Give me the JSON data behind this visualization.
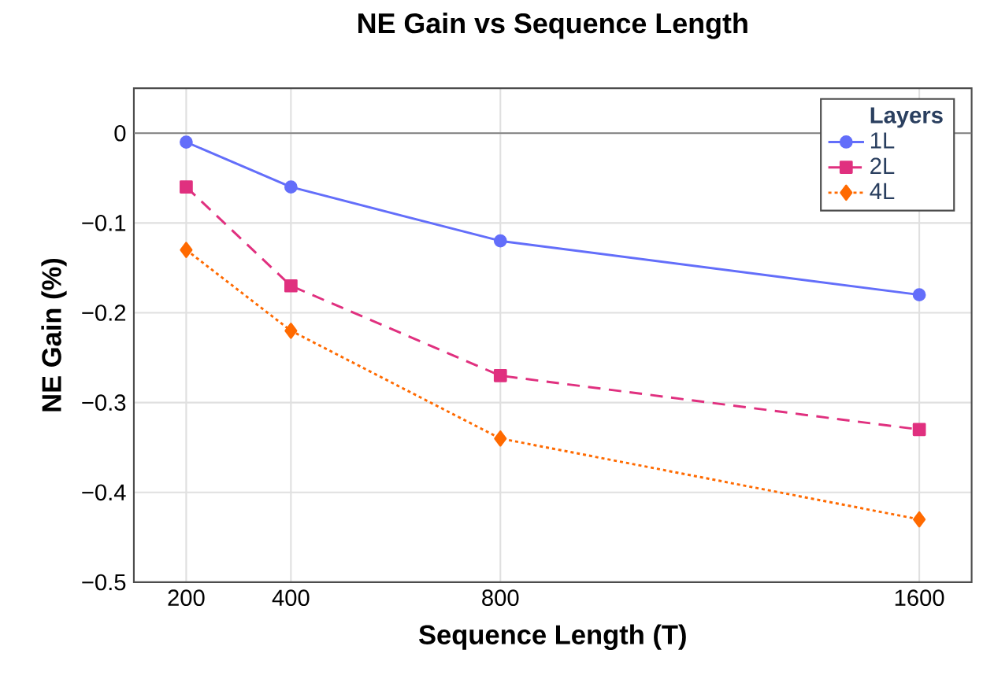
{
  "chart_data": {
    "type": "line",
    "title": "NE Gain vs Sequence Length",
    "xlabel": "Sequence Length (T)",
    "ylabel": "NE Gain (%)",
    "legend_title": "Layers",
    "legend": "top right",
    "grid": true,
    "x": [
      200,
      400,
      800,
      1600
    ],
    "xlim": [
      100,
      1700
    ],
    "xticks": [
      200,
      400,
      800,
      1600
    ],
    "ylim": [
      -0.5,
      0.05
    ],
    "yticks": [
      {
        "value": 0,
        "label": "0"
      },
      {
        "value": -0.1,
        "label": "−0.1"
      },
      {
        "value": -0.2,
        "label": "−0.2"
      },
      {
        "value": -0.3,
        "label": "−0.3"
      },
      {
        "value": -0.4,
        "label": "−0.4"
      },
      {
        "value": -0.5,
        "label": "−0.5"
      }
    ],
    "ref_lines": [
      {
        "axis": "y",
        "value": 0,
        "color": "#808080"
      }
    ],
    "series": [
      {
        "name": "1L",
        "color": "#636efa",
        "marker": "circle",
        "line_style": "solid",
        "values": [
          -0.01,
          -0.06,
          -0.12,
          -0.18
        ]
      },
      {
        "name": "2L",
        "color": "#e0307f",
        "marker": "square",
        "line_style": "dashed",
        "values": [
          -0.06,
          -0.17,
          -0.27,
          -0.33
        ]
      },
      {
        "name": "4L",
        "color": "#ff6a00",
        "marker": "diamond",
        "line_style": "dotted",
        "values": [
          -0.13,
          -0.22,
          -0.34,
          -0.43
        ]
      }
    ]
  }
}
